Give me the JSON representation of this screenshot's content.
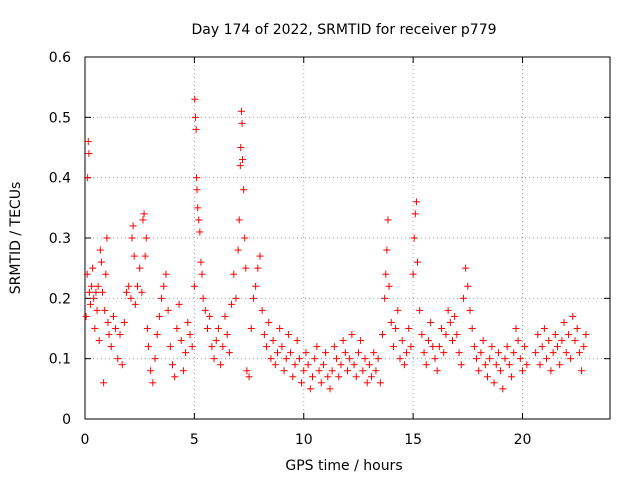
{
  "chart_data": {
    "type": "scatter",
    "title": "Day 174 of 2022, SRMTID for receiver p779",
    "xlabel": "GPS time / hours",
    "ylabel": "SRMTID / TECUs",
    "xlim": [
      0,
      24
    ],
    "ylim": [
      0,
      0.6
    ],
    "xticks": [
      0,
      5,
      10,
      15,
      20
    ],
    "xtick_labels": [
      "0",
      "5",
      "10",
      "15",
      "20"
    ],
    "yticks": [
      0,
      0.1,
      0.2,
      0.3,
      0.4,
      0.5,
      0.6
    ],
    "ytick_labels": [
      "0",
      "0.1",
      "0.2",
      "0.3",
      "0.4",
      "0.5",
      "0.6"
    ],
    "grid": true,
    "marker": "+",
    "color": "#ff0000",
    "series": [
      {
        "name": "SRMTID",
        "points": [
          [
            0.05,
            0.17
          ],
          [
            0.1,
            0.24
          ],
          [
            0.12,
            0.4
          ],
          [
            0.15,
            0.46
          ],
          [
            0.18,
            0.44
          ],
          [
            0.2,
            0.21
          ],
          [
            0.25,
            0.19
          ],
          [
            0.3,
            0.22
          ],
          [
            0.35,
            0.25
          ],
          [
            0.4,
            0.2
          ],
          [
            0.45,
            0.15
          ],
          [
            0.5,
            0.21
          ],
          [
            0.55,
            0.18
          ],
          [
            0.6,
            0.22
          ],
          [
            0.65,
            0.13
          ],
          [
            0.7,
            0.28
          ],
          [
            0.75,
            0.26
          ],
          [
            0.8,
            0.21
          ],
          [
            0.85,
            0.06
          ],
          [
            0.9,
            0.18
          ],
          [
            0.95,
            0.24
          ],
          [
            1.0,
            0.3
          ],
          [
            1.05,
            0.16
          ],
          [
            1.1,
            0.14
          ],
          [
            1.2,
            0.12
          ],
          [
            1.3,
            0.17
          ],
          [
            1.4,
            0.15
          ],
          [
            1.5,
            0.1
          ],
          [
            1.6,
            0.14
          ],
          [
            1.7,
            0.09
          ],
          [
            1.8,
            0.16
          ],
          [
            1.9,
            0.21
          ],
          [
            2.0,
            0.22
          ],
          [
            2.1,
            0.2
          ],
          [
            2.15,
            0.3
          ],
          [
            2.2,
            0.32
          ],
          [
            2.25,
            0.27
          ],
          [
            2.3,
            0.19
          ],
          [
            2.4,
            0.22
          ],
          [
            2.5,
            0.25
          ],
          [
            2.6,
            0.21
          ],
          [
            2.65,
            0.33
          ],
          [
            2.7,
            0.34
          ],
          [
            2.75,
            0.27
          ],
          [
            2.8,
            0.3
          ],
          [
            2.85,
            0.15
          ],
          [
            2.9,
            0.12
          ],
          [
            3.0,
            0.08
          ],
          [
            3.1,
            0.06
          ],
          [
            3.2,
            0.1
          ],
          [
            3.3,
            0.14
          ],
          [
            3.4,
            0.17
          ],
          [
            3.5,
            0.2
          ],
          [
            3.6,
            0.22
          ],
          [
            3.7,
            0.24
          ],
          [
            3.8,
            0.18
          ],
          [
            3.9,
            0.12
          ],
          [
            4.0,
            0.09
          ],
          [
            4.1,
            0.07
          ],
          [
            4.2,
            0.15
          ],
          [
            4.3,
            0.19
          ],
          [
            4.4,
            0.13
          ],
          [
            4.5,
            0.08
          ],
          [
            4.6,
            0.11
          ],
          [
            4.7,
            0.16
          ],
          [
            4.8,
            0.14
          ],
          [
            4.9,
            0.12
          ],
          [
            5.0,
            0.22
          ],
          [
            5.02,
            0.53
          ],
          [
            5.05,
            0.5
          ],
          [
            5.08,
            0.48
          ],
          [
            5.1,
            0.4
          ],
          [
            5.12,
            0.38
          ],
          [
            5.15,
            0.35
          ],
          [
            5.2,
            0.33
          ],
          [
            5.25,
            0.31
          ],
          [
            5.3,
            0.26
          ],
          [
            5.35,
            0.24
          ],
          [
            5.4,
            0.2
          ],
          [
            5.5,
            0.18
          ],
          [
            5.6,
            0.15
          ],
          [
            5.7,
            0.17
          ],
          [
            5.8,
            0.12
          ],
          [
            5.9,
            0.1
          ],
          [
            6.0,
            0.13
          ],
          [
            6.1,
            0.15
          ],
          [
            6.2,
            0.09
          ],
          [
            6.3,
            0.12
          ],
          [
            6.4,
            0.17
          ],
          [
            6.5,
            0.14
          ],
          [
            6.6,
            0.11
          ],
          [
            6.7,
            0.19
          ],
          [
            6.8,
            0.24
          ],
          [
            6.9,
            0.2
          ],
          [
            7.0,
            0.28
          ],
          [
            7.05,
            0.33
          ],
          [
            7.1,
            0.42
          ],
          [
            7.12,
            0.45
          ],
          [
            7.15,
            0.51
          ],
          [
            7.18,
            0.49
          ],
          [
            7.2,
            0.43
          ],
          [
            7.25,
            0.38
          ],
          [
            7.3,
            0.3
          ],
          [
            7.35,
            0.25
          ],
          [
            7.4,
            0.08
          ],
          [
            7.5,
            0.07
          ],
          [
            7.6,
            0.15
          ],
          [
            7.7,
            0.2
          ],
          [
            7.8,
            0.22
          ],
          [
            7.9,
            0.25
          ],
          [
            8.0,
            0.27
          ],
          [
            8.1,
            0.18
          ],
          [
            8.2,
            0.14
          ],
          [
            8.3,
            0.12
          ],
          [
            8.4,
            0.16
          ],
          [
            8.5,
            0.1
          ],
          [
            8.6,
            0.13
          ],
          [
            8.7,
            0.09
          ],
          [
            8.8,
            0.11
          ],
          [
            8.9,
            0.15
          ],
          [
            9.0,
            0.12
          ],
          [
            9.1,
            0.08
          ],
          [
            9.2,
            0.1
          ],
          [
            9.3,
            0.14
          ],
          [
            9.4,
            0.11
          ],
          [
            9.5,
            0.07
          ],
          [
            9.6,
            0.09
          ],
          [
            9.7,
            0.13
          ],
          [
            9.8,
            0.1
          ],
          [
            9.9,
            0.06
          ],
          [
            10.0,
            0.08
          ],
          [
            10.1,
            0.11
          ],
          [
            10.2,
            0.09
          ],
          [
            10.3,
            0.05
          ],
          [
            10.4,
            0.07
          ],
          [
            10.5,
            0.1
          ],
          [
            10.6,
            0.12
          ],
          [
            10.7,
            0.08
          ],
          [
            10.8,
            0.06
          ],
          [
            10.9,
            0.09
          ],
          [
            11.0,
            0.11
          ],
          [
            11.1,
            0.07
          ],
          [
            11.2,
            0.05
          ],
          [
            11.3,
            0.08
          ],
          [
            11.4,
            0.12
          ],
          [
            11.5,
            0.1
          ],
          [
            11.6,
            0.07
          ],
          [
            11.7,
            0.09
          ],
          [
            11.8,
            0.13
          ],
          [
            11.9,
            0.11
          ],
          [
            12.0,
            0.08
          ],
          [
            12.1,
            0.1
          ],
          [
            12.2,
            0.14
          ],
          [
            12.3,
            0.09
          ],
          [
            12.4,
            0.07
          ],
          [
            12.5,
            0.11
          ],
          [
            12.6,
            0.13
          ],
          [
            12.7,
            0.08
          ],
          [
            12.8,
            0.1
          ],
          [
            12.9,
            0.06
          ],
          [
            13.0,
            0.09
          ],
          [
            13.1,
            0.07
          ],
          [
            13.2,
            0.11
          ],
          [
            13.3,
            0.08
          ],
          [
            13.4,
            0.1
          ],
          [
            13.5,
            0.06
          ],
          [
            13.6,
            0.14
          ],
          [
            13.7,
            0.2
          ],
          [
            13.75,
            0.24
          ],
          [
            13.8,
            0.28
          ],
          [
            13.85,
            0.33
          ],
          [
            13.9,
            0.22
          ],
          [
            14.0,
            0.16
          ],
          [
            14.1,
            0.12
          ],
          [
            14.2,
            0.15
          ],
          [
            14.3,
            0.18
          ],
          [
            14.4,
            0.1
          ],
          [
            14.5,
            0.13
          ],
          [
            14.6,
            0.09
          ],
          [
            14.7,
            0.11
          ],
          [
            14.8,
            0.15
          ],
          [
            14.9,
            0.12
          ],
          [
            15.0,
            0.24
          ],
          [
            15.05,
            0.3
          ],
          [
            15.1,
            0.34
          ],
          [
            15.15,
            0.36
          ],
          [
            15.2,
            0.26
          ],
          [
            15.3,
            0.18
          ],
          [
            15.4,
            0.14
          ],
          [
            15.5,
            0.11
          ],
          [
            15.6,
            0.09
          ],
          [
            15.7,
            0.13
          ],
          [
            15.8,
            0.16
          ],
          [
            15.9,
            0.12
          ],
          [
            16.0,
            0.1
          ],
          [
            16.1,
            0.08
          ],
          [
            16.2,
            0.12
          ],
          [
            16.3,
            0.15
          ],
          [
            16.4,
            0.11
          ],
          [
            16.5,
            0.14
          ],
          [
            16.6,
            0.18
          ],
          [
            16.7,
            0.16
          ],
          [
            16.8,
            0.13
          ],
          [
            16.9,
            0.17
          ],
          [
            17.0,
            0.14
          ],
          [
            17.1,
            0.11
          ],
          [
            17.2,
            0.09
          ],
          [
            17.3,
            0.2
          ],
          [
            17.4,
            0.25
          ],
          [
            17.5,
            0.22
          ],
          [
            17.6,
            0.18
          ],
          [
            17.7,
            0.15
          ],
          [
            17.8,
            0.12
          ],
          [
            17.9,
            0.1
          ],
          [
            18.0,
            0.08
          ],
          [
            18.1,
            0.11
          ],
          [
            18.2,
            0.13
          ],
          [
            18.3,
            0.09
          ],
          [
            18.4,
            0.07
          ],
          [
            18.5,
            0.1
          ],
          [
            18.6,
            0.12
          ],
          [
            18.7,
            0.06
          ],
          [
            18.8,
            0.09
          ],
          [
            18.9,
            0.11
          ],
          [
            19.0,
            0.08
          ],
          [
            19.1,
            0.05
          ],
          [
            19.2,
            0.1
          ],
          [
            19.3,
            0.12
          ],
          [
            19.4,
            0.09
          ],
          [
            19.5,
            0.07
          ],
          [
            19.6,
            0.11
          ],
          [
            19.7,
            0.15
          ],
          [
            19.8,
            0.13
          ],
          [
            19.9,
            0.1
          ],
          [
            20.0,
            0.08
          ],
          [
            20.1,
            0.12
          ],
          [
            20.2,
            0.09
          ],
          [
            20.6,
            0.11
          ],
          [
            20.7,
            0.14
          ],
          [
            20.8,
            0.09
          ],
          [
            20.9,
            0.12
          ],
          [
            21.0,
            0.15
          ],
          [
            21.1,
            0.1
          ],
          [
            21.2,
            0.13
          ],
          [
            21.3,
            0.08
          ],
          [
            21.4,
            0.11
          ],
          [
            21.5,
            0.14
          ],
          [
            21.6,
            0.12
          ],
          [
            21.7,
            0.09
          ],
          [
            21.8,
            0.13
          ],
          [
            21.9,
            0.16
          ],
          [
            22.0,
            0.11
          ],
          [
            22.1,
            0.14
          ],
          [
            22.2,
            0.1
          ],
          [
            22.3,
            0.17
          ],
          [
            22.4,
            0.13
          ],
          [
            22.5,
            0.15
          ],
          [
            22.6,
            0.11
          ],
          [
            22.7,
            0.08
          ],
          [
            22.8,
            0.12
          ],
          [
            22.9,
            0.14
          ]
        ]
      }
    ]
  }
}
